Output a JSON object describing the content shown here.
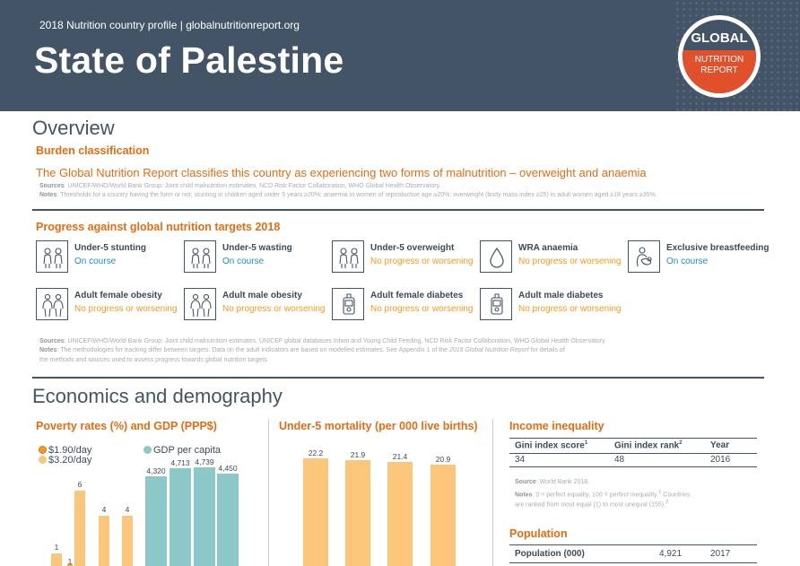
{
  "header": {
    "subtitle": "2018 Nutrition country profile  |  globalnutritionreport.org",
    "title": "State of Palestine",
    "logo_top": "GLOBAL",
    "logo_bottom_1": "NUTRITION",
    "logo_bottom_2": "REPORT"
  },
  "overview": {
    "title": "Overview",
    "burden_heading": "Burden classification",
    "burden_text": "The Global Nutrition Report classifies this country as experiencing two forms of malnutrition – overweight and anaemia",
    "sources_label": "Sources",
    "sources_text": ": UNICEF/WHO/World Bank Group: Joint child malnutrition estimates, NCD Risk Factor Collaboration, WHO Global Health Observatory.",
    "notes_label": "Notes",
    "notes_text": ": Thresholds for a country having the form or not: stunting in children aged under 5 years ≥20%; anaemia in women of reproductive age ≥20%; overweight (body mass index ≥25) in adult women aged ≥18 years ≥35%."
  },
  "progress": {
    "heading": "Progress against global nutrition targets 2018",
    "targets": [
      {
        "name": "Under-5 stunting",
        "status": "On course",
        "icon": "children-icon"
      },
      {
        "name": "Under-5 wasting",
        "status": "On course",
        "icon": "children-icon"
      },
      {
        "name": "Under-5 overweight",
        "status": "No progress or worsening",
        "icon": "children-icon"
      },
      {
        "name": "WRA anaemia",
        "status": "No progress or worsening",
        "icon": "blood-drop-icon"
      },
      {
        "name": "Exclusive breastfeeding",
        "status": "On course",
        "icon": "breastfeeding-icon"
      },
      {
        "name": "Adult female obesity",
        "status": "No progress or worsening",
        "icon": "adults-icon"
      },
      {
        "name": "Adult male obesity",
        "status": "No progress or worsening",
        "icon": "adults-icon"
      },
      {
        "name": "Adult female diabetes",
        "status": "No progress or worsening",
        "icon": "glucose-meter-icon"
      },
      {
        "name": "Adult male diabetes",
        "status": "No progress or worsening",
        "icon": "glucose-meter-icon"
      }
    ],
    "sources_label": "Sources",
    "sources_text": ": UNICEF/WHO/World Bank Group: Joint child malnutrition estimates, UNICEF global databases Infant and Young Child Feeding, NCD Risk Factor Collaboration, WHO Global Health Observatory.",
    "notes_label": "Notes",
    "notes_text_1": ": The methodologies for tracking differ between targets. Data on the adult indicators are based on modelled estimates. See Appendix 1 of the ",
    "notes_italic": "2018 Global Nutrition Report",
    "notes_text_2": " for details of",
    "notes_text_3": "the methods and sources used to assess progress towards global nutrition targets."
  },
  "economics": {
    "title": "Economics and demography",
    "poverty_heading": "Poverty rates (%) and GDP (PPP$)",
    "mortality_heading": "Under-5 mortality (per 000 live births)",
    "income_heading": "Income inequality",
    "income_table": {
      "headers": [
        "Gini index score",
        "Gini index rank",
        "Year"
      ],
      "sup1": "1",
      "sup2": "2",
      "row": [
        "34",
        "48",
        "2016"
      ]
    },
    "income_source_label": "Source",
    "income_source_text": ": World Bank 2018.",
    "income_notes_label": "Notes",
    "income_notes_text_1": ": 0 = perfect equality, 100 = perfect inequality.",
    "income_notes_sup1": "1",
    "income_notes_text_2": " Countries",
    "income_notes_text_3": "are ranked from most equal (1) to most unequal (155).",
    "income_notes_sup2": "2",
    "population_heading": "Population",
    "population_row": [
      "Population (000)",
      "4,921",
      "2017"
    ]
  },
  "colors": {
    "header_bg": "#435466",
    "accent_orange": "#e36d13",
    "on_course": "#1c8fc4",
    "no_progress": "#f39a1f",
    "poverty_190": "#f39a1f",
    "poverty_320": "#fbc57a",
    "gdp": "#8dc8c8",
    "mortality": "#fbc57a"
  },
  "chart_data": [
    {
      "type": "bar",
      "title": "Poverty rates (%) and GDP (PPP$)",
      "series": [
        {
          "name": "$1.90/day",
          "values": [
            null,
            1,
            null,
            null
          ]
        },
        {
          "name": "$3.20/day",
          "values": [
            1,
            6,
            4,
            4
          ]
        }
      ],
      "gdp_series": {
        "name": "GDP per capita",
        "values": [
          4320,
          4713,
          4739,
          4450
        ]
      },
      "labels": {
        "poverty_190": [
          "",
          "1",
          "",
          ""
        ],
        "poverty_320": [
          "1",
          "6",
          "4",
          "4"
        ],
        "gdp": [
          "4,320",
          "4,713",
          "4,739",
          "4,450"
        ]
      }
    },
    {
      "type": "bar",
      "title": "Under-5 mortality (per 000 live births)",
      "values": [
        22.2,
        21.9,
        21.4,
        20.9
      ],
      "labels": [
        "22.2",
        "21.9",
        "21.4",
        "20.9"
      ]
    }
  ]
}
